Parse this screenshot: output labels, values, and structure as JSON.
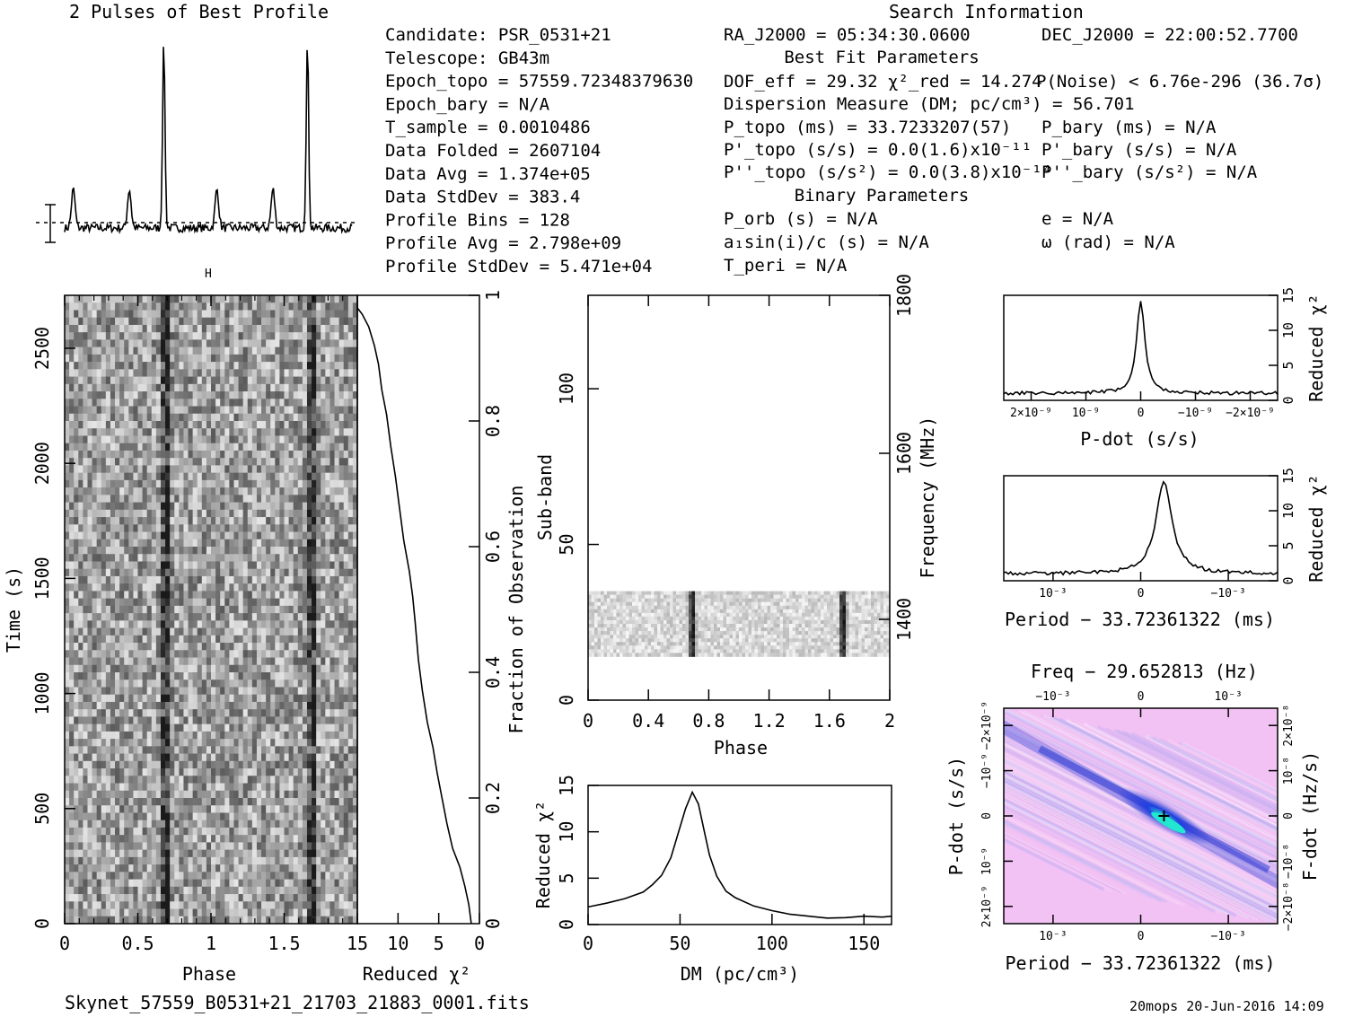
{
  "header": {
    "profile_title": "2 Pulses of Best Profile",
    "search_title": "Search Information"
  },
  "info": {
    "col1": [
      "Candidate:  PSR_0531+21",
      "Telescope:  GB43m",
      "Epoch_topo = 57559.72348379630",
      "Epoch_bary = N/A",
      "T_sample      =  0.0010486",
      "Data Folded   =  2607104",
      "Data Avg      =  1.374e+05",
      "Data StdDev   =  383.4",
      "Profile Bins  =  128",
      "Profile Avg   =  2.798e+09",
      "Profile StdDev =  5.471e+04"
    ],
    "col2": [
      "RA_J2000 = 05:34:30.0600",
      "Best Fit Parameters",
      "DOF_eff = 29.32  χ²_red = 14.274",
      "Dispersion Measure (DM; pc/cm³) = 56.701",
      "P_topo (ms) =  33.7233207(57)",
      "P'_topo (s/s) = 0.0(1.6)x10⁻¹¹",
      "P''_topo (s/s²) = 0.0(3.8)x10⁻¹⁴",
      "Binary Parameters",
      "P_orb (s) = N/A",
      "a₁sin(i)/c (s) = N/A",
      "T_peri = N/A"
    ],
    "col3": [
      "DEC_J2000 = 22:00:52.7700",
      "P(Noise) < 6.76e-296  (36.7σ)",
      "P_bary (ms) = N/A",
      "P'_bary (s/s) = N/A",
      "P''_bary (s/s²) = N/A",
      "e = N/A",
      "ω (rad) = N/A"
    ]
  },
  "footer": {
    "filename": "Skynet_57559_B0531+21_21703_21883_0001.fits",
    "stamp": "20mops 20-Jun-2016 14:09"
  },
  "colors": {
    "line": "#000000",
    "heat_bg": "#f4c6f2",
    "heat_mid": "#8a8ff0",
    "heat_hot": "#2030d0",
    "heat_peak": "#20e0d0"
  },
  "chart_data": [
    {
      "id": "profile",
      "type": "line",
      "title": "2 Pulses of Best Profile",
      "xlim": [
        0,
        2
      ],
      "peaks_phase": [
        0.69,
        1.69
      ],
      "secondary_peaks_phase": [
        0.06,
        0.45,
        1.06,
        1.45
      ],
      "peak_height": 1.0,
      "secondary_height": 0.21,
      "baseline": 0.0
    },
    {
      "id": "time-phase",
      "type": "heatmap",
      "xlabel": "Phase",
      "ylabel": "Time (s)",
      "xlim": [
        0,
        2
      ],
      "ylim": [
        0,
        2730
      ],
      "xticks": [
        "0",
        "0.5",
        "1",
        "1.5"
      ],
      "yticks": [
        "0",
        "500",
        "1000",
        "1500",
        "2000",
        "2500"
      ],
      "pulse_phase": [
        0.69,
        1.69
      ],
      "top_marker": "H"
    },
    {
      "id": "time-chi2",
      "type": "line",
      "xlabel": "Reduced χ²",
      "ylabel": "Fraction of Observation",
      "xlim": [
        15,
        0
      ],
      "ylim": [
        0,
        1
      ],
      "xticks": [
        "15",
        "10",
        "5",
        "0"
      ],
      "yticks": [
        "0.2",
        "0.4",
        "0.6",
        "0.8",
        "1"
      ],
      "points": [
        [
          1.0,
          0.0
        ],
        [
          1.3,
          0.03
        ],
        [
          1.8,
          0.06
        ],
        [
          2.4,
          0.09
        ],
        [
          3.3,
          0.12
        ],
        [
          4.0,
          0.16
        ],
        [
          4.6,
          0.2
        ],
        [
          5.2,
          0.24
        ],
        [
          5.7,
          0.28
        ],
        [
          6.4,
          0.32
        ],
        [
          7.0,
          0.37
        ],
        [
          7.5,
          0.42
        ],
        [
          7.9,
          0.48
        ],
        [
          8.2,
          0.52
        ],
        [
          8.6,
          0.56
        ],
        [
          9.3,
          0.61
        ],
        [
          9.8,
          0.66
        ],
        [
          10.3,
          0.71
        ],
        [
          10.9,
          0.76
        ],
        [
          11.4,
          0.81
        ],
        [
          12.0,
          0.85
        ],
        [
          12.4,
          0.89
        ],
        [
          12.9,
          0.92
        ],
        [
          13.6,
          0.95
        ],
        [
          14.4,
          0.97
        ],
        [
          15.0,
          0.98
        ],
        [
          15.6,
          1.0
        ]
      ]
    },
    {
      "id": "subband-phase",
      "type": "heatmap",
      "xlabel": "Phase",
      "ylabel": "Sub-band",
      "ylabel_right": "Frequency (MHz)",
      "xlim": [
        0,
        2
      ],
      "ylim": [
        0,
        130
      ],
      "xticks": [
        "0",
        "0.4",
        "0.8",
        "1.2",
        "1.6",
        "2"
      ],
      "yticks": [
        "0",
        "50",
        "100"
      ],
      "yticks_right": [
        "1400",
        "1600",
        "1800"
      ],
      "filled_subbands": [
        14,
        35
      ],
      "pulse_phase": [
        0.69,
        1.69
      ]
    },
    {
      "id": "dm-chi2",
      "type": "line",
      "xlabel": "DM (pc/cm³)",
      "ylabel": "Reduced χ²",
      "xlim": [
        0,
        165
      ],
      "ylim": [
        0,
        15
      ],
      "xticks": [
        "0",
        "50",
        "100",
        "150"
      ],
      "yticks": [
        "0",
        "5",
        "10",
        "15"
      ],
      "x": [
        0,
        10,
        20,
        30,
        35,
        40,
        45,
        50,
        53,
        56.7,
        60,
        63,
        66,
        70,
        75,
        80,
        90,
        100,
        110,
        120,
        130,
        140,
        150,
        160,
        165
      ],
      "y": [
        1.9,
        2.3,
        2.8,
        3.5,
        4.3,
        5.3,
        7.2,
        10.5,
        12.5,
        14.27,
        13.0,
        10.2,
        7.5,
        5.2,
        3.6,
        2.9,
        2.0,
        1.5,
        1.1,
        0.9,
        0.7,
        0.75,
        0.9,
        0.8,
        0.9
      ]
    },
    {
      "id": "pdot-chi2",
      "type": "line",
      "xlabel": "P-dot (s/s)",
      "ylabel": "Reduced χ²",
      "ylim": [
        0,
        15
      ],
      "xticks": [
        "2×10⁻⁹",
        "10⁻⁹",
        "0",
        "−10⁻⁹",
        "−2×10⁻⁹"
      ],
      "yticks": [
        "0",
        "5",
        "10",
        "15"
      ],
      "peak_x_fraction": 0.5,
      "peak_value": 14.27,
      "baseline": 1.0
    },
    {
      "id": "period-chi2",
      "type": "line",
      "xlabel": "Period − 33.72361322 (ms)",
      "ylabel": "Reduced χ²",
      "ylim": [
        0,
        15
      ],
      "xticks": [
        "10⁻³",
        "0",
        "−10⁻³"
      ],
      "yticks": [
        "0",
        "5",
        "10",
        "15"
      ],
      "peak_x_fraction": 0.585,
      "peak_value": 14.27,
      "baseline": 1.0
    },
    {
      "id": "period-pdot",
      "type": "heatmap",
      "title": "Freq − 29.652813 (Hz)",
      "xlabel": "Period − 33.72361322 (ms)",
      "ylabel": "P-dot (s/s)",
      "ylabel_right": "F-dot (Hz/s)",
      "xticks": [
        "10⁻³",
        "0",
        "−10⁻³"
      ],
      "xticks_top": [
        "−10⁻³",
        "0",
        "10⁻³"
      ],
      "yticks": [
        "2×10⁻⁹",
        "10⁻⁹",
        "0",
        "−10⁻⁹",
        "−2×10⁻⁹"
      ],
      "yticks_right": [
        "−2×10⁻⁸",
        "−10⁻⁸",
        "0",
        "10⁻⁸",
        "2×10⁻⁸"
      ],
      "best_fit": [
        0.585,
        0.5
      ]
    }
  ]
}
